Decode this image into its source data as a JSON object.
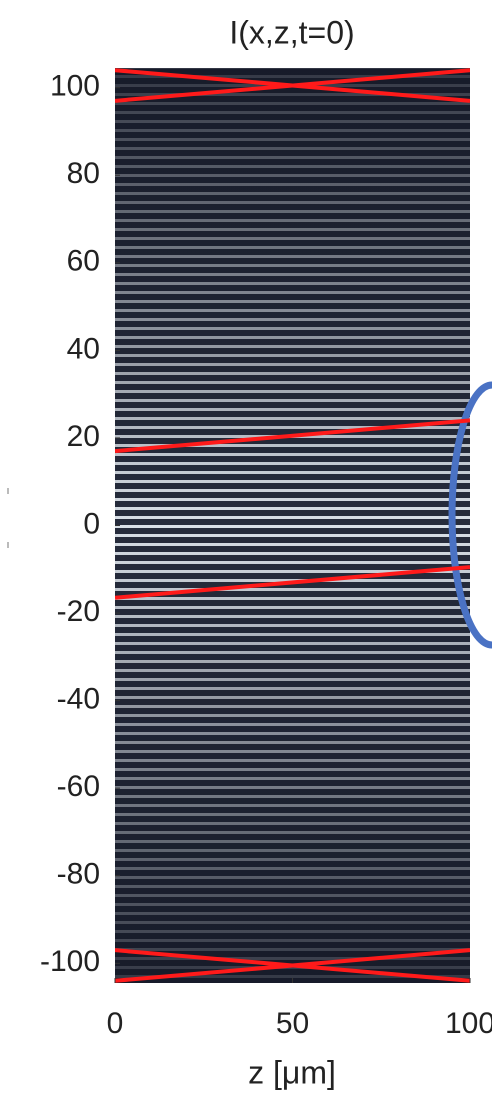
{
  "chart_data": {
    "type": "line",
    "title": "I(x,z,t=0)",
    "x_label": "z [μm]",
    "xlim": [
      0,
      100
    ],
    "xticks": [
      0,
      50,
      100
    ],
    "ylim": [
      -104.5,
      104.5
    ],
    "yticks": [
      -100,
      -80,
      -60,
      -40,
      -20,
      0,
      20,
      40,
      60,
      80,
      100
    ],
    "series": [
      {
        "color": "#ff1a1a",
        "x": [
          0,
          100
        ],
        "values": [
          104,
          97
        ]
      },
      {
        "color": "#ff1a1a",
        "x": [
          0,
          100
        ],
        "values": [
          97,
          104
        ]
      },
      {
        "color": "#ff1a1a",
        "x": [
          0,
          100
        ],
        "values": [
          17,
          24
        ]
      },
      {
        "color": "#ff1a1a",
        "x": [
          0,
          100
        ],
        "values": [
          -16.5,
          -9.5
        ]
      },
      {
        "color": "#ff1a1a",
        "x": [
          0,
          100
        ],
        "values": [
          -97,
          -104
        ]
      },
      {
        "color": "#ff1a1a",
        "x": [
          0,
          100
        ],
        "values": [
          -104,
          -97
        ]
      }
    ]
  }
}
